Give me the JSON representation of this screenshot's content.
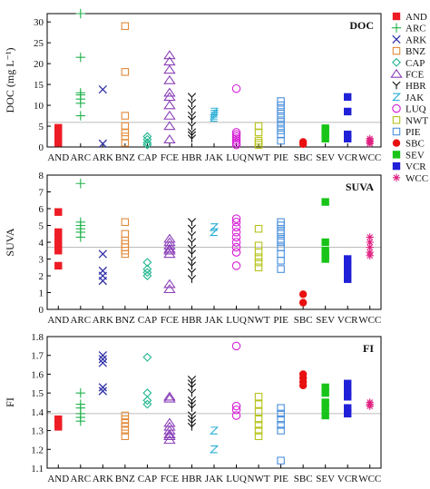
{
  "chart_data": [
    {
      "type": "scatter",
      "title": "DOC",
      "ylabel": "DOC (mg L⁻¹)",
      "ylim": [
        0,
        32
      ],
      "yticks": [
        0,
        5,
        10,
        15,
        20,
        25,
        30
      ],
      "reference_line": 5.9,
      "categories": [
        "AND",
        "ARC",
        "ARK",
        "BNZ",
        "CAP",
        "FCE",
        "HBR",
        "JAK",
        "LUQ",
        "NWT",
        "PIE",
        "SBC",
        "SEV",
        "VCR",
        "WCC"
      ],
      "series": [
        {
          "name": "AND",
          "values": [
            1.0,
            1.8,
            2.5,
            3.2,
            4.0,
            4.6
          ]
        },
        {
          "name": "ARC",
          "values": [
            7.5,
            10.5,
            11.5,
            12.5,
            13.0,
            21.5,
            32.0
          ]
        },
        {
          "name": "ARK",
          "values": [
            0.8,
            13.8
          ]
        },
        {
          "name": "BNZ",
          "values": [
            1.0,
            2.5,
            3.5,
            5.0,
            7.5,
            18.0,
            29.0
          ]
        },
        {
          "name": "CAP",
          "values": [
            0.5,
            1.0,
            1.8,
            2.5
          ]
        },
        {
          "name": "FCE",
          "values": [
            1.8,
            5.0,
            7.5,
            10.0,
            12.0,
            13.0,
            16.0,
            18.5,
            20.5,
            22.0
          ]
        },
        {
          "name": "HBR",
          "values": [
            2.0,
            2.8,
            3.5,
            5.0,
            6.5,
            7.5,
            9.0,
            10.5,
            12.0
          ]
        },
        {
          "name": "JAK",
          "values": [
            7.0,
            7.5,
            8.0,
            8.5
          ]
        },
        {
          "name": "LUQ",
          "values": [
            0.5,
            1.0,
            1.5,
            2.0,
            2.5,
            3.0,
            3.5,
            14.0
          ]
        },
        {
          "name": "NWT",
          "values": [
            0.5,
            1.0,
            1.5,
            3.5,
            5.0
          ]
        },
        {
          "name": "PIE",
          "values": [
            1.5,
            3.0,
            4.0,
            5.0,
            6.0,
            7.0,
            8.0,
            9.0,
            10.0,
            11.0
          ]
        },
        {
          "name": "SBC",
          "values": [
            0.7,
            1.2
          ]
        },
        {
          "name": "SEV",
          "values": [
            2.0,
            3.0,
            4.0,
            4.5
          ]
        },
        {
          "name": "VCR",
          "values": [
            2.0,
            3.0,
            8.5,
            12.0
          ]
        },
        {
          "name": "WCC",
          "values": [
            0.8,
            1.2,
            1.6,
            2.0
          ]
        }
      ]
    },
    {
      "type": "scatter",
      "title": "SUVA",
      "ylabel": "SUVA",
      "ylim": [
        0,
        8
      ],
      "yticks": [
        0,
        1,
        2,
        3,
        4,
        5,
        6,
        7,
        8
      ],
      "reference_line": 3.7,
      "categories": [
        "AND",
        "ARC",
        "ARK",
        "BNZ",
        "CAP",
        "FCE",
        "HBR",
        "JAK",
        "LUQ",
        "NWT",
        "PIE",
        "SBC",
        "SEV",
        "VCR",
        "WCC"
      ],
      "series": [
        {
          "name": "AND",
          "values": [
            2.6,
            3.5,
            3.8,
            4.0,
            4.3,
            4.6,
            5.8
          ]
        },
        {
          "name": "ARC",
          "values": [
            4.3,
            4.6,
            4.8,
            5.0,
            5.2,
            7.5
          ]
        },
        {
          "name": "ARK",
          "values": [
            1.7,
            2.0,
            2.3,
            3.3
          ]
        },
        {
          "name": "BNZ",
          "values": [
            3.3,
            3.5,
            3.7,
            3.9,
            4.1,
            4.5,
            5.2
          ]
        },
        {
          "name": "CAP",
          "values": [
            2.0,
            2.2,
            2.4,
            2.8
          ]
        },
        {
          "name": "FCE",
          "values": [
            1.2,
            1.5,
            3.3,
            3.5,
            3.6,
            3.8,
            4.0,
            4.2
          ]
        },
        {
          "name": "HBR",
          "values": [
            1.8,
            2.2,
            2.6,
            2.9,
            3.3,
            3.6,
            4.0,
            4.4,
            4.8,
            5.2
          ]
        },
        {
          "name": "JAK",
          "values": [
            4.6,
            4.9
          ]
        },
        {
          "name": "LUQ",
          "values": [
            2.6,
            3.4,
            3.7,
            4.0,
            4.3,
            4.6,
            4.9,
            5.2,
            5.4
          ]
        },
        {
          "name": "NWT",
          "values": [
            2.5,
            2.8,
            3.1,
            3.4,
            3.8,
            4.8
          ]
        },
        {
          "name": "PIE",
          "values": [
            2.4,
            2.9,
            3.3,
            3.7,
            4.0,
            4.2,
            4.5,
            4.7,
            5.0,
            5.2
          ]
        },
        {
          "name": "SBC",
          "values": [
            0.4,
            0.9
          ]
        },
        {
          "name": "SEV",
          "values": [
            3.0,
            3.2,
            3.5,
            4.0,
            6.4
          ]
        },
        {
          "name": "VCR",
          "values": [
            1.8,
            2.2,
            2.6,
            3.0
          ]
        },
        {
          "name": "WCC",
          "values": [
            3.2,
            3.4,
            3.7,
            4.0,
            4.3
          ]
        }
      ]
    },
    {
      "type": "scatter",
      "title": "FI",
      "ylabel": "FI",
      "ylim": [
        1.1,
        1.8
      ],
      "yticks": [
        1.1,
        1.2,
        1.3,
        1.4,
        1.5,
        1.6,
        1.7,
        1.8
      ],
      "reference_line": 1.39,
      "categories": [
        "AND",
        "ARC",
        "ARK",
        "BNZ",
        "CAP",
        "FCE",
        "HBR",
        "JAK",
        "LUQ",
        "NWT",
        "PIE",
        "SBC",
        "SEV",
        "VCR",
        "WCC"
      ],
      "series": [
        {
          "name": "AND",
          "values": [
            1.32,
            1.34,
            1.36
          ]
        },
        {
          "name": "ARC",
          "values": [
            1.35,
            1.37,
            1.39,
            1.42,
            1.44,
            1.5
          ]
        },
        {
          "name": "ARK",
          "values": [
            1.51,
            1.53,
            1.66,
            1.68,
            1.7
          ]
        },
        {
          "name": "BNZ",
          "values": [
            1.27,
            1.3,
            1.32,
            1.34,
            1.36,
            1.38
          ]
        },
        {
          "name": "CAP",
          "values": [
            1.44,
            1.46,
            1.5,
            1.69
          ]
        },
        {
          "name": "FCE",
          "values": [
            1.25,
            1.27,
            1.28,
            1.3,
            1.32,
            1.34,
            1.47,
            1.48
          ]
        },
        {
          "name": "HBR",
          "values": [
            1.32,
            1.34,
            1.36,
            1.38,
            1.42,
            1.44,
            1.46,
            1.5,
            1.53,
            1.55,
            1.57
          ]
        },
        {
          "name": "JAK",
          "values": [
            1.2,
            1.3
          ]
        },
        {
          "name": "LUQ",
          "values": [
            1.38,
            1.41,
            1.43,
            1.75
          ]
        },
        {
          "name": "NWT",
          "values": [
            1.27,
            1.3,
            1.33,
            1.36,
            1.4,
            1.44,
            1.48
          ]
        },
        {
          "name": "PIE",
          "values": [
            1.14,
            1.3,
            1.33,
            1.36,
            1.39,
            1.42
          ]
        },
        {
          "name": "SBC",
          "values": [
            1.54,
            1.56,
            1.58,
            1.6
          ]
        },
        {
          "name": "SEV",
          "values": [
            1.38,
            1.42,
            1.45,
            1.5,
            1.53
          ]
        },
        {
          "name": "VCR",
          "values": [
            1.39,
            1.42,
            1.48,
            1.51,
            1.55
          ]
        },
        {
          "name": "WCC",
          "values": [
            1.43,
            1.44,
            1.45
          ]
        }
      ]
    }
  ],
  "legend": [
    {
      "name": "AND",
      "color": "#ee1c25",
      "marker": "filled-square"
    },
    {
      "name": "ARC",
      "color": "#22b24c",
      "marker": "plus"
    },
    {
      "name": "ARK",
      "color": "#3333aa",
      "marker": "x"
    },
    {
      "name": "BNZ",
      "color": "#e08a3a",
      "marker": "open-square"
    },
    {
      "name": "CAP",
      "color": "#1fb58f",
      "marker": "open-diamond"
    },
    {
      "name": "FCE",
      "color": "#8a3fb8",
      "marker": "open-triangle"
    },
    {
      "name": "HBR",
      "color": "#111111",
      "marker": "tri-down"
    },
    {
      "name": "JAK",
      "color": "#2aaed6",
      "marker": "z-glyph"
    },
    {
      "name": "LUQ",
      "color": "#d61fd6",
      "marker": "open-circle"
    },
    {
      "name": "NWT",
      "color": "#b6c21a",
      "marker": "open-square"
    },
    {
      "name": "PIE",
      "color": "#4a8fdc",
      "marker": "open-square"
    },
    {
      "name": "SBC",
      "color": "#e81010",
      "marker": "filled-circle"
    },
    {
      "name": "SEV",
      "color": "#18c418",
      "marker": "filled-square"
    },
    {
      "name": "VCR",
      "color": "#2020d8",
      "marker": "filled-square"
    },
    {
      "name": "WCC",
      "color": "#e02080",
      "marker": "asterisk"
    }
  ],
  "colors": {
    "axis": "#000000",
    "reference_line": "#bbbbbb"
  }
}
